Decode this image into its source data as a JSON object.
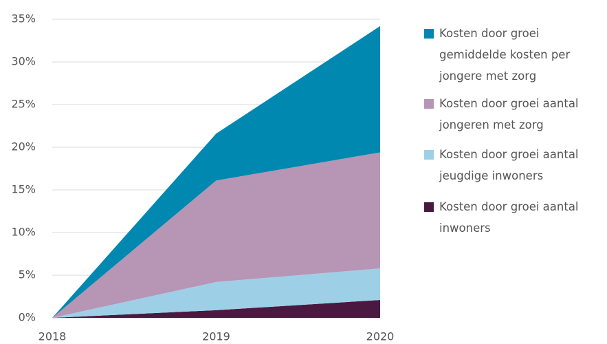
{
  "chart_data": {
    "type": "stacked-area",
    "categories": [
      "2018",
      "2019",
      "2020"
    ],
    "series": [
      {
        "name": "Kosten door groei aantal inwoners",
        "color": "#4a1942",
        "values": [
          0,
          0.9,
          2.1
        ]
      },
      {
        "name": "Kosten door groei aantal jeugdige inwoners",
        "color": "#9dd0e6",
        "values": [
          0,
          3.3,
          3.7
        ]
      },
      {
        "name": "Kosten door groei aantal jongeren met zorg",
        "color": "#b795b5",
        "values": [
          0,
          11.9,
          13.6
        ]
      },
      {
        "name": "Kosten door groei gemiddelde kosten per jongere met zorg",
        "color": "#0088b0",
        "values": [
          0,
          5.5,
          14.8
        ]
      }
    ],
    "ylim": [
      0,
      35
    ],
    "yticks": [
      {
        "value": 0,
        "label": "0%"
      },
      {
        "value": 5,
        "label": "5%"
      },
      {
        "value": 10,
        "label": "10%"
      },
      {
        "value": 15,
        "label": "15%"
      },
      {
        "value": 20,
        "label": "20%"
      },
      {
        "value": 25,
        "label": "25%"
      },
      {
        "value": 30,
        "label": "30%"
      },
      {
        "value": 35,
        "label": "35%"
      }
    ],
    "grid": true
  }
}
